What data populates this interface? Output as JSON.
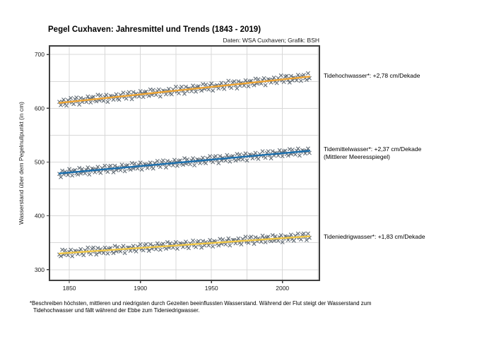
{
  "header": {
    "title": "Pegel Cuxhaven: Jahresmittel und Trends (1843 - 2019)",
    "subtitle": "Daten: WSA Cuxhaven; Grafik: BSH"
  },
  "footnote": {
    "line1": "*Beschreiben höchsten, mittleren und niedrigsten durch Gezeiten beeinflussten Wasserstand. Während der Flut steigt der Wasserstand zum",
    "line2": "Tidehochwasser und fällt während der Ebbe zum Tideniedrigwasser."
  },
  "chart_data": {
    "type": "scatter",
    "title": "Pegel Cuxhaven: Jahresmittel und Trends (1843 - 2019)",
    "source_note": "Daten: WSA Cuxhaven; Grafik: BSH",
    "xlabel": "",
    "ylabel": "Wasserstand über dem Pegelnullpunkt (in cm)",
    "xlim": [
      1836,
      2026
    ],
    "ylim": [
      280,
      716
    ],
    "x_ticks": [
      1850,
      1900,
      1950,
      2000
    ],
    "y_ticks": [
      300,
      400,
      500,
      600,
      700
    ],
    "x_gridlines_every": 25,
    "y_gridlines_every": 50,
    "grid": true,
    "grid_color": "#d8d8d8",
    "frame_color": "#404040",
    "marker": "x",
    "marker_color": "#4f5a64",
    "years": {
      "start": 1843,
      "end": 2019,
      "step": 1
    },
    "series": [
      {
        "name": "Tidehochwasser",
        "annotation": "Tidehochwasser*: +2,78 cm/Dekade",
        "trend_cm_per_decade": 2.78,
        "trend_start": 610,
        "trend_end": 659,
        "trend_color": "#f0a532",
        "values": [
          612,
          606,
          612,
          616,
          608,
          605,
          615,
          612,
          619,
          611,
          608,
          617,
          620,
          613,
          607,
          619,
          612,
          617,
          615,
          612,
          622,
          617,
          611,
          620,
          621,
          615,
          613,
          625,
          615,
          624,
          617,
          614,
          621,
          625,
          612,
          619,
          623,
          622,
          616,
          622,
          626,
          618,
          616,
          625,
          622,
          629,
          621,
          618,
          627,
          630,
          623,
          617,
          630,
          622,
          627,
          625,
          622,
          632,
          627,
          621,
          630,
          631,
          626,
          623,
          635,
          625,
          634,
          628,
          625,
          632,
          635,
          622,
          630,
          633,
          632,
          626,
          632,
          636,
          628,
          626,
          635,
          632,
          640,
          631,
          628,
          637,
          640,
          633,
          627,
          640,
          632,
          637,
          636,
          632,
          642,
          637,
          631,
          640,
          641,
          636,
          633,
          645,
          636,
          644,
          638,
          635,
          642,
          646,
          633,
          641,
          641,
          643,
          637,
          643,
          647,
          639,
          636,
          646,
          643,
          651,
          641,
          638,
          648,
          650,
          643,
          637,
          650,
          642,
          647,
          646,
          642,
          652,
          648,
          641,
          650,
          651,
          646,
          643,
          655,
          646,
          654,
          648,
          646,
          652,
          656,
          643,
          651,
          654,
          653,
          648,
          653,
          657,
          650,
          647,
          656,
          653,
          661,
          652,
          649,
          659,
          660,
          653,
          648,
          660,
          652,
          657,
          656,
          652,
          662,
          658,
          651,
          660,
          662,
          656,
          653,
          665,
          656
        ]
      },
      {
        "name": "Tidemittelwasser",
        "annotation": "Tidemittelwasser*: +2,37 cm/Dekade",
        "annotation_line2": "(Mittlerer Meeresspiegel)",
        "trend_cm_per_decade": 2.37,
        "trend_start": 479,
        "trend_end": 521,
        "trend_color": "#1a6fae",
        "values": [
          478,
          472,
          484,
          477,
          482,
          480,
          476,
          487,
          482,
          475,
          484,
          485,
          479,
          477,
          489,
          479,
          487,
          482,
          479,
          485,
          490,
          477,
          484,
          488,
          487,
          481,
          486,
          491,
          483,
          480,
          489,
          486,
          493,
          485,
          482,
          491,
          493,
          487,
          481,
          493,
          485,
          490,
          488,
          485,
          495,
          490,
          483,
          493,
          494,
          488,
          486,
          498,
          488,
          497,
          491,
          488,
          494,
          499,
          486,
          493,
          496,
          495,
          489,
          495,
          499,
          491,
          488,
          498,
          495,
          502,
          494,
          491,
          500,
          503,
          496,
          490,
          502,
          495,
          500,
          498,
          494,
          504,
          499,
          493,
          502,
          503,
          497,
          495,
          507,
          497,
          505,
          499,
          496,
          503,
          507,
          494,
          501,
          505,
          504,
          498,
          504,
          508,
          500,
          498,
          507,
          504,
          511,
          503,
          500,
          509,
          511,
          504,
          498,
          511,
          503,
          508,
          506,
          503,
          513,
          508,
          501,
          510,
          511,
          506,
          503,
          515,
          505,
          514,
          508,
          505,
          512,
          516,
          503,
          511,
          514,
          513,
          507,
          513,
          517,
          509,
          506,
          515,
          512,
          520,
          511,
          508,
          517,
          520,
          513,
          507,
          520,
          512,
          517,
          516,
          512,
          522,
          517,
          511,
          520,
          521,
          515,
          512,
          524,
          515,
          523,
          517,
          514,
          521,
          525,
          512,
          519,
          522,
          521,
          516,
          521,
          525,
          517
        ]
      },
      {
        "name": "Tideniedrigwasser",
        "annotation": "Tideniedrigwasser*: +1,83 cm/Dekade",
        "trend_cm_per_decade": 1.83,
        "trend_start": 330,
        "trend_end": 362,
        "trend_color": "#f2c846",
        "values": [
          328,
          325,
          337,
          328,
          336,
          330,
          327,
          333,
          337,
          325,
          332,
          335,
          334,
          329,
          334,
          338,
          330,
          327,
          336,
          334,
          341,
          332,
          329,
          339,
          341,
          334,
          328,
          340,
          332,
          338,
          335,
          331,
          341,
          337,
          330,
          339,
          340,
          334,
          331,
          344,
          334,
          342,
          336,
          334,
          340,
          344,
          331,
          338,
          341,
          341,
          335,
          340,
          344,
          337,
          334,
          343,
          340,
          347,
          338,
          336,
          345,
          347,
          340,
          335,
          347,
          339,
          344,
          342,
          338,
          349,
          344,
          337,
          346,
          348,
          342,
          339,
          351,
          341,
          349,
          344,
          341,
          347,
          351,
          339,
          346,
          349,
          348,
          342,
          347,
          352,
          343,
          340,
          349,
          347,
          354,
          345,
          342,
          351,
          353,
          347,
          341,
          353,
          345,
          351,
          349,
          345,
          355,
          350,
          343,
          353,
          352,
          348,
          345,
          357,
          348,
          356,
          350,
          347,
          353,
          358,
          345,
          352,
          355,
          355,
          349,
          354,
          358,
          350,
          347,
          357,
          354,
          361,
          352,
          350,
          359,
          361,
          354,
          348,
          360,
          353,
          358,
          356,
          352,
          363,
          358,
          351,
          360,
          361,
          355,
          353,
          364,
          354,
          362,
          357,
          354,
          360,
          364,
          351,
          358,
          362,
          361,
          355,
          360,
          365,
          357,
          354,
          363,
          360,
          367,
          359,
          356,
          365,
          367,
          361,
          355,
          367,
          359
        ]
      }
    ]
  }
}
